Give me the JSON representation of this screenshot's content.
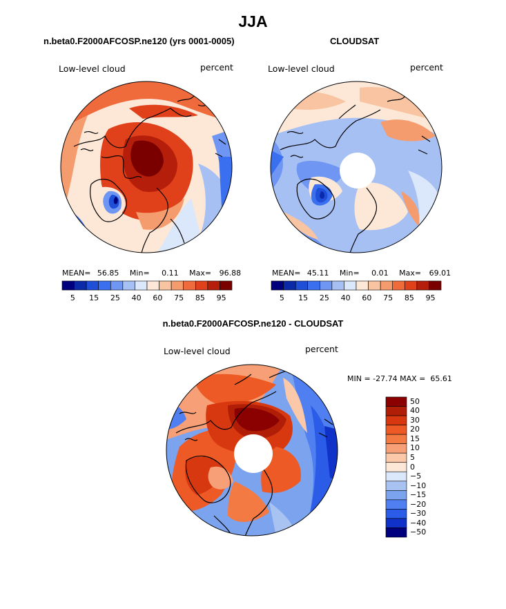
{
  "title": "JJA",
  "panels": [
    {
      "name": "model",
      "title": "n.beta0.F2000AFCOSP.ne120 (yrs 0001-0005)",
      "left_label": "Low-level cloud",
      "right_label": "percent",
      "stats": {
        "mean_label": "MEAN=",
        "mean": "56.85",
        "min_label": "Min=",
        "min": "0.11",
        "max_label": "Max=",
        "max": "96.88"
      }
    },
    {
      "name": "cloudsat",
      "title": "CLOUDSAT",
      "left_label": "Low-level cloud",
      "right_label": "percent",
      "stats": {
        "mean_label": "MEAN=",
        "mean": "45.11",
        "min_label": "Min=",
        "min": "0.01",
        "max_label": "Max=",
        "max": "69.01"
      }
    },
    {
      "name": "difference",
      "title": "n.beta0.F2000AFCOSP.ne120 - CLOUDSAT",
      "left_label": "Low-level cloud",
      "right_label": "percent",
      "stats_text": "MIN = -27.74 MAX =  65.61"
    }
  ],
  "colorbar_top": {
    "colors": [
      "#00007f",
      "#0a2aa8",
      "#1f4fd6",
      "#3a6ff0",
      "#6f96f2",
      "#a7c0f4",
      "#dbe7fa",
      "#fde8d8",
      "#f8c4a2",
      "#f59c6e",
      "#ef6b3b",
      "#e0401a",
      "#b51e0a",
      "#7a0000"
    ],
    "tick_labels": [
      "5",
      "15",
      "25",
      "40",
      "60",
      "75",
      "85",
      "95"
    ]
  },
  "colorbar_diff": {
    "colors_top_to_bottom": [
      "#8b0000",
      "#b01e08",
      "#d8380f",
      "#ee5a25",
      "#f47a44",
      "#f7a077",
      "#fbc8aa",
      "#fde8d8",
      "#dbe7fa",
      "#a8c2f2",
      "#7ca3ee",
      "#4f7ff0",
      "#2a5ce8",
      "#1032c9",
      "#00007f"
    ],
    "tick_labels": [
      "50",
      "40",
      "30",
      "20",
      "15",
      "10",
      "5",
      "0",
      "−5",
      "−10",
      "−15",
      "−20",
      "−30",
      "−40",
      "−50"
    ]
  },
  "map_colors": {
    "land_outline": "#000000",
    "pole_hole": "#ffffff"
  }
}
